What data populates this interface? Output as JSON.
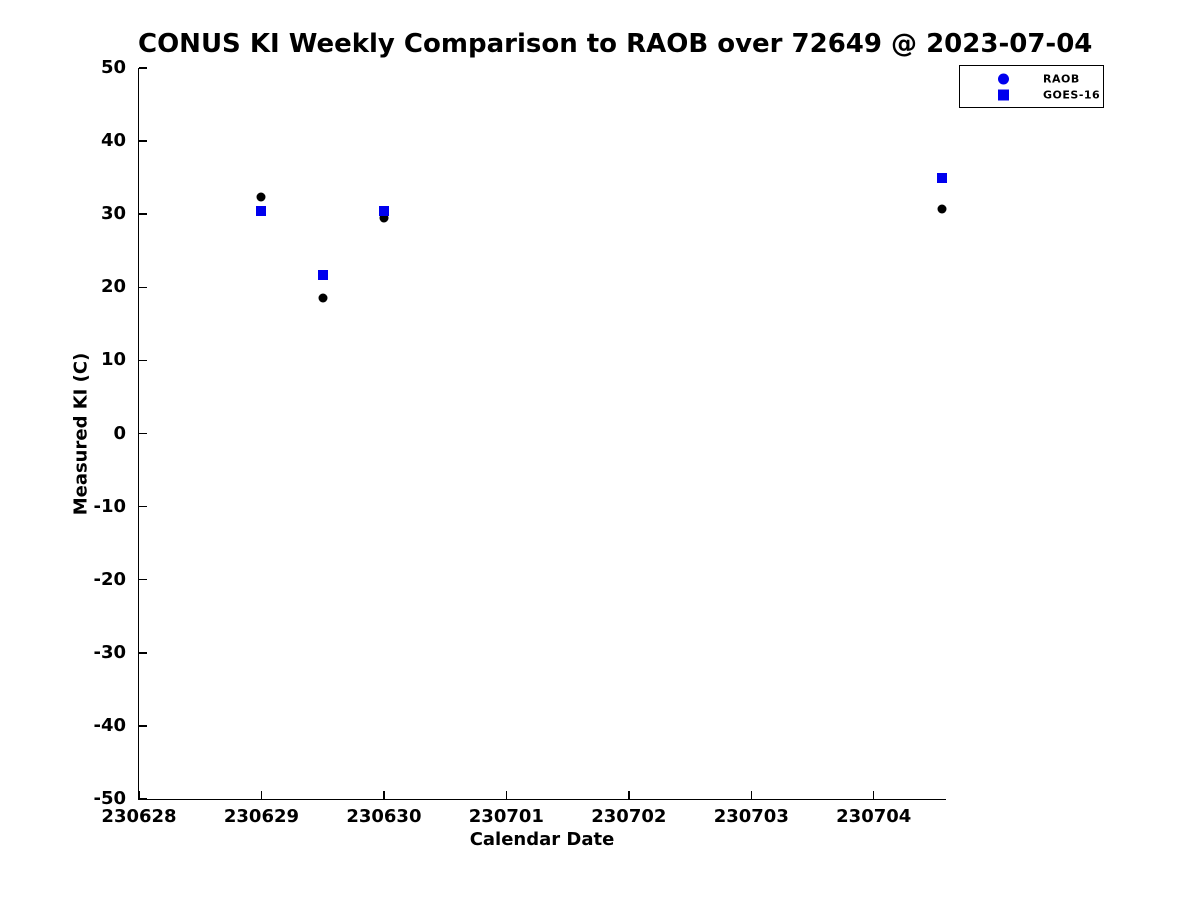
{
  "chart_data": {
    "type": "scatter",
    "title": "CONUS KI Weekly Comparison to RAOB over 72649 @ 2023-07-04",
    "xlabel": "Calendar Date",
    "ylabel": "Measured KI (C)",
    "grid": false,
    "axes": {
      "xlim_offset_days": [
        0,
        6.59
      ],
      "ylim": [
        -50,
        50
      ],
      "x_ticks": [
        {
          "offset": 0,
          "label": "230628"
        },
        {
          "offset": 1,
          "label": "230629"
        },
        {
          "offset": 2,
          "label": "230630"
        },
        {
          "offset": 3,
          "label": "230701"
        },
        {
          "offset": 4,
          "label": "230702"
        },
        {
          "offset": 5,
          "label": "230703"
        },
        {
          "offset": 6,
          "label": "230704"
        }
      ],
      "y_ticks": [
        50,
        40,
        30,
        20,
        10,
        0,
        -10,
        -20,
        -30,
        -40,
        -50
      ]
    },
    "legend": {
      "position": "top-right-outside",
      "entries": [
        {
          "label": "RAOB",
          "marker": "circle",
          "marker_color": "#0000ee"
        },
        {
          "label": "GOES-16",
          "marker": "square",
          "marker_color": "#0000ee"
        }
      ]
    },
    "series": [
      {
        "name": "RAOB",
        "marker": "circle",
        "color": "#000000",
        "points": [
          {
            "x_offset_days": 1.0,
            "x_date_code": 230629.0,
            "y": 32.4
          },
          {
            "x_offset_days": 1.5,
            "x_date_code": 230629.5,
            "y": 18.6
          },
          {
            "x_offset_days": 2.0,
            "x_date_code": 230630.0,
            "y": 29.5
          },
          {
            "x_offset_days": 6.56,
            "x_date_code": 230704.55,
            "y": 30.7
          }
        ]
      },
      {
        "name": "GOES-16",
        "marker": "square",
        "color": "#0000ee",
        "points": [
          {
            "x_offset_days": 1.0,
            "x_date_code": 230629.0,
            "y": 30.5
          },
          {
            "x_offset_days": 1.5,
            "x_date_code": 230629.5,
            "y": 21.7
          },
          {
            "x_offset_days": 2.0,
            "x_date_code": 230630.0,
            "y": 30.4
          },
          {
            "x_offset_days": 6.56,
            "x_date_code": 230704.55,
            "y": 34.9
          }
        ]
      }
    ]
  }
}
